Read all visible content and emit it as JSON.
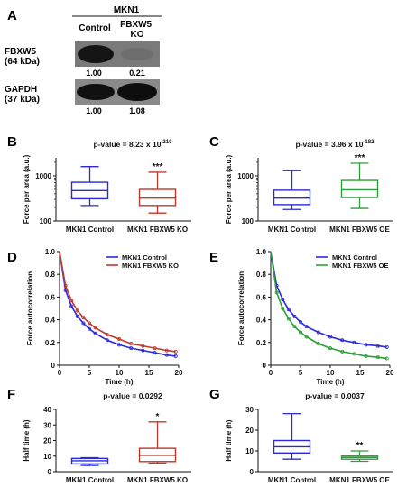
{
  "colors": {
    "blue": "#2a2ad8",
    "red": "#c0392b",
    "green": "#2e9e3a",
    "control_dark": "#2a2ad8"
  },
  "panel_letters": {
    "A": "A",
    "B": "B",
    "C": "C",
    "D": "D",
    "E": "E",
    "F": "F",
    "G": "G"
  },
  "western": {
    "cell_line": "MKN1",
    "col_control": "Control",
    "col_ko": "FBXW5 KO",
    "row1_label": "FBXW5 (64 kDa)",
    "row2_label": "GAPDH (37 kDa)",
    "row1_quant": [
      "1.00",
      "0.21"
    ],
    "row2_quant": [
      "1.00",
      "1.08"
    ]
  },
  "chart_data": [
    {
      "id": "B",
      "type": "boxplot",
      "title": "p-value = 8.23 x 10-210",
      "ylabel": "Force per area (a.u.)",
      "yscale": "log",
      "ylim": [
        100,
        2500
      ],
      "yticks": [
        100,
        1000
      ],
      "yticklabels": [
        "100",
        "1000"
      ],
      "categories": [
        "MKN1 Control",
        "MKN1 FBXW5 KO"
      ],
      "boxes": [
        {
          "whisker_low": 220,
          "q1": 310,
          "median": 470,
          "q3": 720,
          "whisker_high": 1600,
          "color": "#2a2ad8"
        },
        {
          "whisker_low": 150,
          "q1": 220,
          "median": 320,
          "q3": 500,
          "whisker_high": 1200,
          "color": "#c0392b"
        }
      ],
      "significance": [
        "",
        "***"
      ]
    },
    {
      "id": "C",
      "type": "boxplot",
      "title": "p-value = 3.96 x 10-182",
      "ylabel": "Force per area (a.u.)",
      "yscale": "log",
      "ylim": [
        100,
        2500
      ],
      "yticks": [
        100,
        1000
      ],
      "yticklabels": [
        "100",
        "1000"
      ],
      "categories": [
        "MKN1 Control",
        "MKN1 FBXW5 OE"
      ],
      "boxes": [
        {
          "whisker_low": 180,
          "q1": 230,
          "median": 320,
          "q3": 480,
          "whisker_high": 1300,
          "color": "#2a2ad8"
        },
        {
          "whisker_low": 190,
          "q1": 330,
          "median": 490,
          "q3": 790,
          "whisker_high": 1900,
          "color": "#2e9e3a"
        }
      ],
      "significance": [
        "",
        "***"
      ]
    },
    {
      "id": "D",
      "type": "line",
      "xlabel": "Time (h)",
      "ylabel": "Force autocorrelation",
      "xlim": [
        0,
        20
      ],
      "ylim": [
        0,
        1.0
      ],
      "xticks": [
        0,
        5,
        10,
        15,
        20
      ],
      "yticks": [
        0,
        0.2,
        0.4,
        0.6,
        0.8,
        1.0
      ],
      "yticklabels": [
        "0",
        "0.2",
        "0.4",
        "0.6",
        "0.8",
        "1.0"
      ],
      "series": [
        {
          "name": "MKN1 Control",
          "color": "#2a2ad8",
          "x": [
            0,
            1,
            2,
            3,
            4,
            5,
            6,
            8,
            10,
            12,
            14,
            16,
            18,
            19.5
          ],
          "y": [
            1.0,
            0.66,
            0.52,
            0.43,
            0.37,
            0.32,
            0.28,
            0.22,
            0.18,
            0.15,
            0.13,
            0.11,
            0.09,
            0.08
          ]
        },
        {
          "name": "MKN1 FBXW5 KO",
          "color": "#c0392b",
          "x": [
            0,
            1,
            2,
            3,
            4,
            5,
            6,
            8,
            10,
            12,
            14,
            16,
            18,
            19.5
          ],
          "y": [
            1.0,
            0.7,
            0.57,
            0.48,
            0.42,
            0.37,
            0.33,
            0.27,
            0.23,
            0.19,
            0.17,
            0.15,
            0.13,
            0.12
          ]
        }
      ]
    },
    {
      "id": "E",
      "type": "line",
      "xlabel": "Time (h)",
      "ylabel": "Force autocorrelation",
      "xlim": [
        0,
        20
      ],
      "ylim": [
        0,
        1.0
      ],
      "xticks": [
        0,
        5,
        10,
        15,
        20
      ],
      "yticks": [
        0,
        0.2,
        0.4,
        0.6,
        0.8,
        1.0
      ],
      "yticklabels": [
        "0",
        "0.2",
        "0.4",
        "0.6",
        "0.8",
        "1.0"
      ],
      "series": [
        {
          "name": "MKN1 Control",
          "color": "#2a2ad8",
          "x": [
            0,
            1,
            2,
            3,
            4,
            5,
            6,
            8,
            10,
            12,
            14,
            16,
            18,
            19.5
          ],
          "y": [
            1.0,
            0.7,
            0.58,
            0.49,
            0.43,
            0.38,
            0.34,
            0.29,
            0.25,
            0.22,
            0.2,
            0.18,
            0.17,
            0.16
          ]
        },
        {
          "name": "MKN1 FBXW5 OE",
          "color": "#2e9e3a",
          "x": [
            0,
            1,
            2,
            3,
            4,
            5,
            6,
            8,
            10,
            12,
            14,
            16,
            18,
            19.5
          ],
          "y": [
            1.0,
            0.64,
            0.5,
            0.41,
            0.34,
            0.29,
            0.25,
            0.19,
            0.15,
            0.12,
            0.1,
            0.08,
            0.07,
            0.06
          ]
        }
      ]
    },
    {
      "id": "F",
      "type": "boxplot",
      "title": "p-value = 0.0292",
      "ylabel": "Half time (h)",
      "yscale": "linear",
      "ylim": [
        0,
        40
      ],
      "yticks": [
        0,
        10,
        20,
        30,
        40
      ],
      "yticklabels": [
        "0",
        "10",
        "20",
        "30",
        "40"
      ],
      "categories": [
        "MKN1 Control",
        "MKN1 FBXW5 KO"
      ],
      "boxes": [
        {
          "whisker_low": 4,
          "q1": 5,
          "median": 7,
          "q3": 8.5,
          "whisker_high": 9,
          "color": "#2a2ad8"
        },
        {
          "whisker_low": 5.5,
          "q1": 6.5,
          "median": 10.5,
          "q3": 15,
          "whisker_high": 32,
          "color": "#c0392b"
        }
      ],
      "significance": [
        "",
        "*"
      ]
    },
    {
      "id": "G",
      "type": "boxplot",
      "title": "p-value = 0.0037",
      "ylabel": "Half time (h)",
      "yscale": "linear",
      "ylim": [
        0,
        30
      ],
      "yticks": [
        0,
        10,
        20,
        30
      ],
      "yticklabels": [
        "0",
        "10",
        "20",
        "30"
      ],
      "categories": [
        "MKN1 Control",
        "MKN1 FBXW5 OE"
      ],
      "boxes": [
        {
          "whisker_low": 6,
          "q1": 9,
          "median": 12,
          "q3": 15,
          "whisker_high": 28,
          "color": "#2a2ad8"
        },
        {
          "whisker_low": 5,
          "q1": 6,
          "median": 6.8,
          "q3": 7.5,
          "whisker_high": 10,
          "color": "#2e9e3a"
        }
      ],
      "significance": [
        "",
        "**"
      ]
    }
  ]
}
